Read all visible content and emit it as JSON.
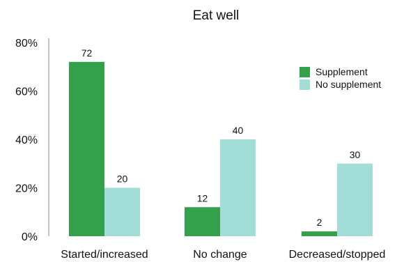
{
  "chart_data": {
    "type": "bar",
    "title": "Eat well",
    "xlabel": "",
    "ylabel": "",
    "categories": [
      "Started/increased",
      "No change",
      "Decreased/stopped"
    ],
    "series": [
      {
        "name": "Supplement",
        "values": [
          72,
          12,
          2
        ],
        "color": "#35a04c"
      },
      {
        "name": "No supplement",
        "values": [
          20,
          40,
          30
        ],
        "color": "#a3ddd8"
      }
    ],
    "ylim": [
      0,
      80
    ],
    "yticks": [
      0,
      20,
      40,
      60,
      80
    ],
    "ytick_labels": [
      "0%",
      "20%",
      "40%",
      "60%",
      "80%"
    ],
    "grid": false,
    "legend_position": "top-right",
    "axis_color": "#888888"
  }
}
